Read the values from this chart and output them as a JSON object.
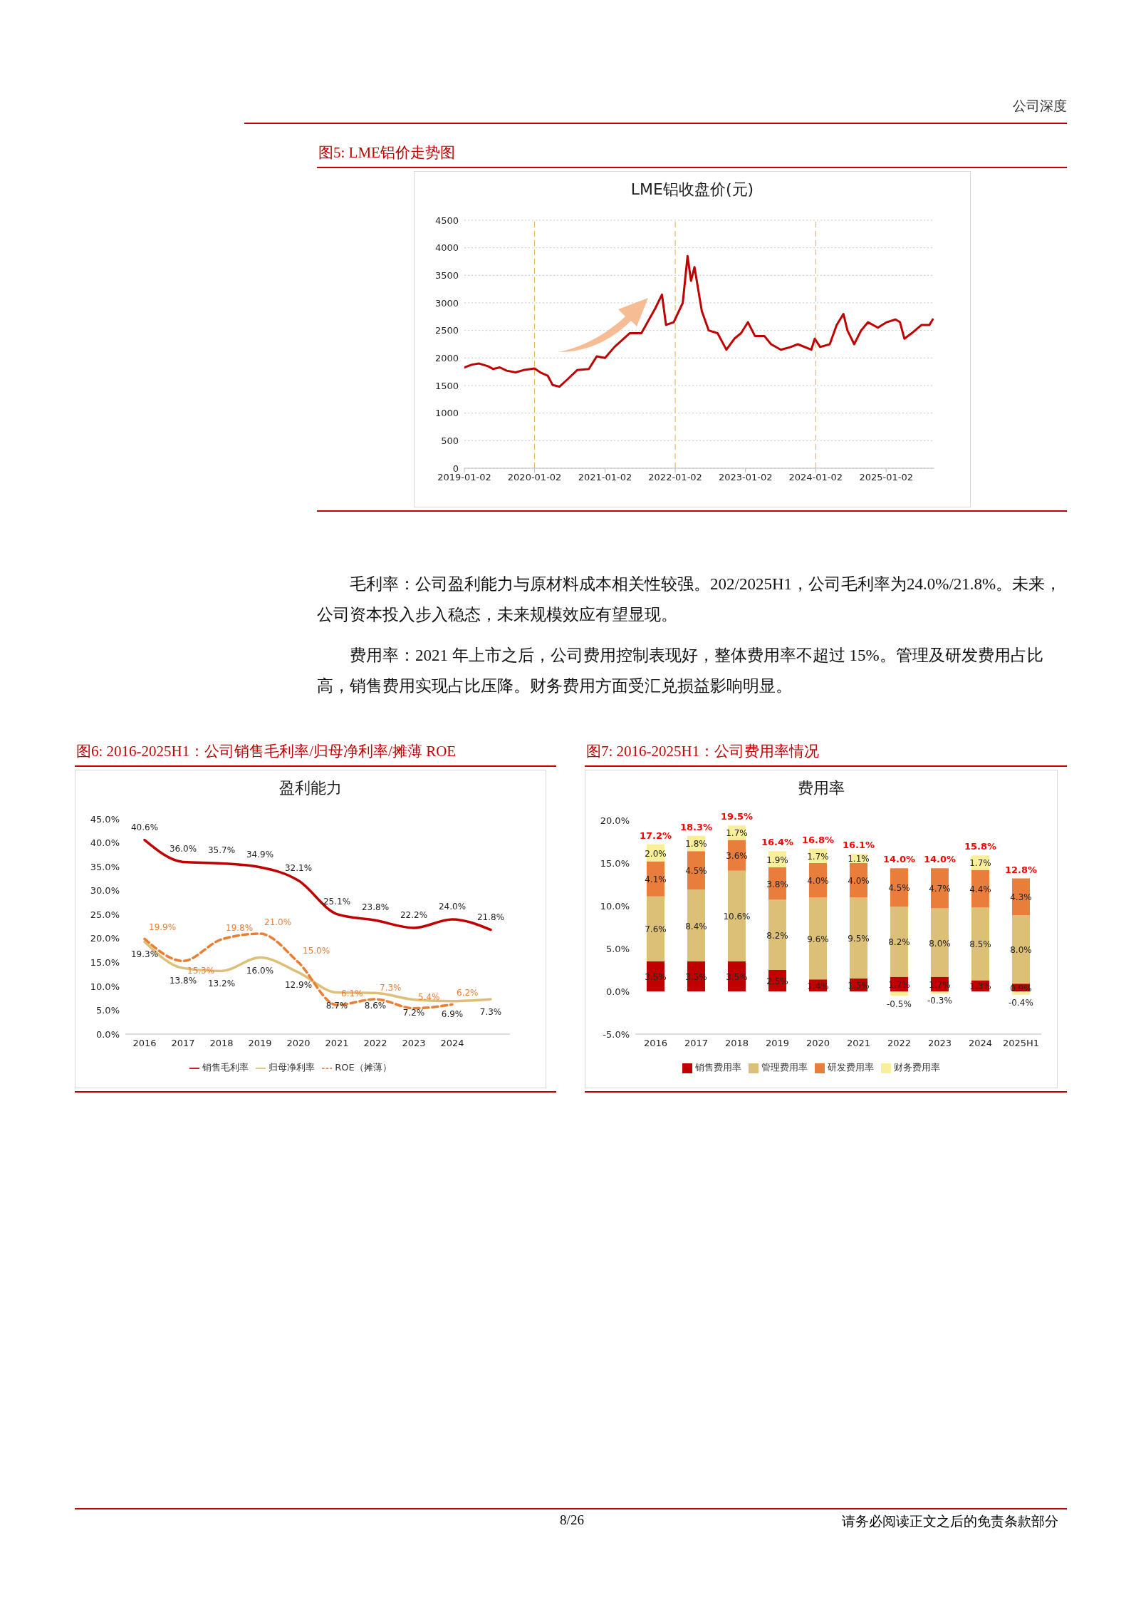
{
  "chart_data": [
    {
      "type": "line",
      "title": "图5:  LME铝价走势图",
      "subtitle": "LME铝收盘价(元)",
      "annotations": [
        "公司深度",
        "毛利率：公司盈利能力与原材料成本相关性较强。202/2025H1，公司毛利率为24.0%/21.8%。未来，公司资本投入步入稳态，未来规模效应有望显现。",
        "费用率：2021 年上市之后，公司费用控制表现好，整体费用率不超过 15%。管理及研发费用占比高，销售费用实现占比压降。财务费用方面受汇兑损益影响明显。"
      ],
      "x": [
        "2019-01-02",
        "2019-02-10",
        "2019-03-20",
        "2019-05-05",
        "2019-06-01",
        "2019-07-05",
        "2019-08-10",
        "2019-09-25",
        "2019-11-05",
        "2020-01-02",
        "2020-02-05",
        "2020-03-10",
        "2020-04-05",
        "2020-05-10",
        "2020-06-20",
        "2020-08-10",
        "2020-10-10",
        "2020-11-20",
        "2021-01-02",
        "2021-02-20",
        "2021-05-10",
        "2021-07-10",
        "2021-09-20",
        "2021-10-25",
        "2021-11-15",
        "2021-12-25",
        "2022-02-10",
        "2022-03-07",
        "2022-03-25",
        "2022-04-12",
        "2022-05-20",
        "2022-06-25",
        "2022-08-10",
        "2022-09-25",
        "2022-11-05",
        "2022-12-10",
        "2023-01-15",
        "2023-02-20",
        "2023-04-10",
        "2023-05-15",
        "2023-07-05",
        "2023-08-25",
        "2023-10-01",
        "2023-12-10",
        "2023-12-28",
        "2024-01-25",
        "2024-03-15",
        "2024-04-20",
        "2024-05-25",
        "2024-06-15",
        "2024-07-20",
        "2024-08-25",
        "2024-09-30",
        "2024-11-20",
        "2025-01-05",
        "2025-02-20",
        "2025-03-15",
        "2025-04-07",
        "2025-05-15",
        "2025-07-05",
        "2025-08-15",
        "2025-09-01"
      ],
      "series": [
        {
          "color": "#c00000",
          "values": [
            1830,
            1880,
            1900,
            1850,
            1800,
            1830,
            1770,
            1740,
            1780,
            1810,
            1730,
            1680,
            1510,
            1480,
            1610,
            1780,
            1800,
            2030,
            2000,
            2200,
            2450,
            2450,
            2900,
            3150,
            2600,
            2650,
            3000,
            3850,
            3400,
            3650,
            2850,
            2500,
            2450,
            2150,
            2350,
            2450,
            2650,
            2400,
            2400,
            2250,
            2150,
            2200,
            2250,
            2150,
            2350,
            2200,
            2250,
            2600,
            2800,
            2500,
            2250,
            2500,
            2650,
            2550,
            2650,
            2700,
            2650,
            2350,
            2450,
            2600,
            2600,
            2700
          ]
        }
      ],
      "xlim": [
        "2019-01-02",
        "2025-09-10"
      ],
      "xticks": [
        "2019-01-02",
        "2020-01-02",
        "2021-01-02",
        "2022-01-02",
        "2023-01-02",
        "2024-01-02",
        "2025-01-02"
      ],
      "ylim": [
        0,
        4500
      ],
      "yticks": [
        0,
        500,
        1000,
        1500,
        2000,
        2500,
        3000,
        3500,
        4000,
        4500
      ],
      "ref_lines": [
        {
          "axis": "x",
          "value": "2020-01-02",
          "color": "#e0b040",
          "line_style": "dashed"
        },
        {
          "axis": "x",
          "value": "2022-01-02",
          "color": "#e0b040",
          "line_style": "dashed"
        },
        {
          "axis": "x",
          "value": "2024-01-02",
          "color": "#e0b040",
          "line_style": "dashed"
        }
      ],
      "grid": "y",
      "marker": "none",
      "line_style": "solid"
    },
    {
      "type": "line",
      "title": "图6:  2016-2025H1：公司销售毛利率/归母净利率/摊薄 ROE",
      "subtitle": "盈利能力",
      "categories": [
        "2016",
        "2017",
        "2018",
        "2019",
        "2020",
        "2021",
        "2022",
        "2023",
        "2024",
        null
      ],
      "series": [
        {
          "name": "销售毛利率",
          "color": "#c00000",
          "values": [
            40.6,
            36.0,
            35.7,
            34.9,
            32.1,
            25.1,
            23.8,
            22.2,
            24.0,
            21.8
          ],
          "value_labels": [
            "40.6%",
            "36.0%",
            "35.7%",
            "34.9%",
            "32.1%",
            "25.1%",
            "23.8%",
            "22.2%",
            "24.0%",
            "21.8%"
          ]
        },
        {
          "name": "归母净利率",
          "color": "#dcc077",
          "values": [
            19.3,
            13.8,
            13.2,
            16.0,
            12.9,
            8.7,
            8.6,
            7.2,
            6.9,
            7.3
          ],
          "value_labels": [
            "19.3%",
            "13.8%",
            "13.2%",
            "16.0%",
            "12.9%",
            "8.7%",
            "8.6%",
            "7.2%",
            "6.9%",
            "7.3%"
          ]
        },
        {
          "name": "ROE（摊薄）",
          "color": "#ed7d31",
          "line_style": "dashed",
          "values": [
            19.9,
            15.3,
            19.8,
            21.0,
            15.0,
            6.1,
            7.3,
            5.4,
            6.2,
            null
          ],
          "value_labels": [
            "19.9%",
            "15.3%",
            "19.8%",
            "21.0%",
            "15.0%",
            "6.1%",
            "7.3%",
            "5.4%",
            "6.2%",
            null
          ]
        }
      ],
      "ylim": [
        0,
        45
      ],
      "yticks": [
        {
          "value": 0,
          "label": "0.0%"
        },
        {
          "value": 5,
          "label": "5.0%"
        },
        {
          "value": 10,
          "label": "10.0%"
        },
        {
          "value": 15,
          "label": "15.0%"
        },
        {
          "value": 20,
          "label": "20.0%"
        },
        {
          "value": 25,
          "label": "25.0%"
        },
        {
          "value": 30,
          "label": "30.0%"
        },
        {
          "value": 35,
          "label": "35.0%"
        },
        {
          "value": 40,
          "label": "40.0%"
        },
        {
          "value": 45,
          "label": "45.0%"
        }
      ],
      "grid": false,
      "legend": "bottom",
      "marker": "none",
      "line_style": "solid"
    },
    {
      "type": "bar",
      "title": "图7:  2016-2025H1：公司费用率情况",
      "subtitle": "费用率",
      "stacked": true,
      "annotations": [
        "8/26",
        "请务必阅读正文之后的免责条款部分"
      ],
      "categories": [
        "2016",
        "2017",
        "2018",
        "2019",
        "2020",
        "2021",
        "2022",
        "2023",
        "2024",
        "2025H1"
      ],
      "series": [
        {
          "name": "销售费用率",
          "color": "#c00000",
          "values": [
            3.5,
            3.5,
            3.5,
            2.5,
            1.4,
            1.5,
            1.7,
            1.7,
            1.3,
            0.9
          ],
          "value_labels": [
            "3.5%",
            "3.5%",
            "3.5%",
            "2.5%",
            "1.4%",
            "1.5%",
            "1.7%",
            "1.7%",
            "1.3%",
            "0.9%"
          ]
        },
        {
          "name": "管理费用率",
          "color": "#dcc077",
          "values": [
            7.6,
            8.4,
            10.6,
            8.2,
            9.6,
            9.5,
            8.2,
            8.0,
            8.5,
            8.0
          ],
          "value_labels": [
            "7.6%",
            "8.4%",
            "10.6%",
            "8.2%",
            "9.6%",
            "9.5%",
            "8.2%",
            "8.0%",
            "8.5%",
            "8.0%"
          ]
        },
        {
          "name": "研发费用率",
          "color": "#e97e3c",
          "values": [
            4.1,
            4.5,
            3.6,
            3.8,
            4.0,
            4.0,
            4.5,
            4.7,
            4.4,
            4.3
          ],
          "value_labels": [
            "4.1%",
            "4.5%",
            "3.6%",
            "3.8%",
            "4.0%",
            "4.0%",
            "4.5%",
            "4.7%",
            "4.4%",
            "4.3%"
          ]
        },
        {
          "name": "财务费用率",
          "color": "#f9ef9a",
          "values": [
            2.0,
            1.8,
            1.7,
            1.9,
            1.7,
            1.1,
            -0.5,
            -0.3,
            1.7,
            -0.4
          ],
          "value_labels": [
            "2.0%",
            "1.8%",
            "1.7%",
            "1.9%",
            "1.7%",
            "1.1%",
            "-0.5%",
            "-0.3%",
            "1.7%",
            "-0.4%"
          ]
        }
      ],
      "totals": [
        "17.2%",
        "18.3%",
        "19.5%",
        "16.4%",
        "16.8%",
        "16.1%",
        "14.0%",
        "14.0%",
        "15.8%",
        "12.8%"
      ],
      "ylim": [
        -5,
        20
      ],
      "yticks": [
        {
          "value": -5,
          "label": "-5.0%"
        },
        {
          "value": 0,
          "label": "0.0%"
        },
        {
          "value": 5,
          "label": "5.0%"
        },
        {
          "value": 10,
          "label": "10.0%"
        },
        {
          "value": 15,
          "label": "15.0%"
        },
        {
          "value": 20,
          "label": "20.0%"
        }
      ],
      "grid": false,
      "legend": "bottom"
    }
  ]
}
